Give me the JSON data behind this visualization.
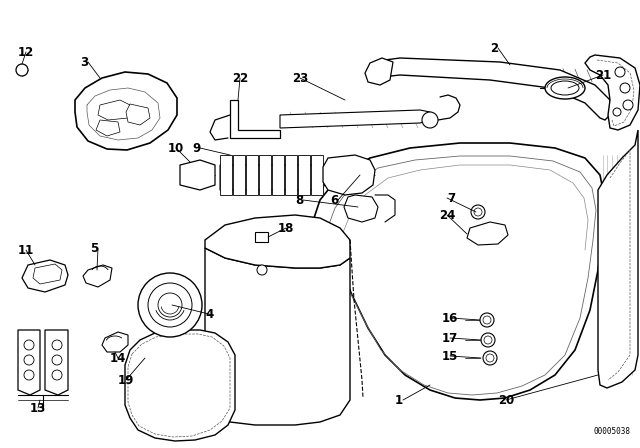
{
  "bg_color": "#ffffff",
  "line_color": "#000000",
  "diagram_id": "00005038",
  "figsize": [
    6.4,
    4.48
  ],
  "dpi": 100
}
